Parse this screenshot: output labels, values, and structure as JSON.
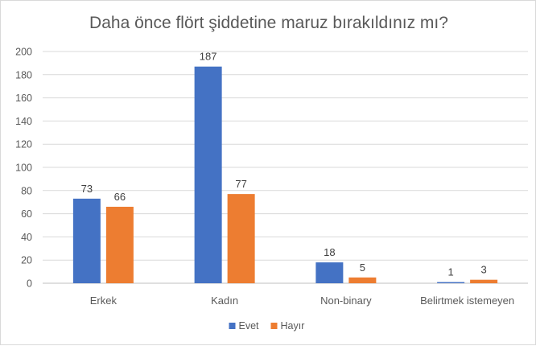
{
  "chart_data": {
    "type": "bar",
    "title": "Daha önce flört şiddetine maruz bırakıldınız mı?",
    "xlabel": "",
    "ylabel": "",
    "categories": [
      "Erkek",
      "Kadın",
      "Non-binary",
      "Belirtmek istemeyen"
    ],
    "series": [
      {
        "name": "Evet",
        "color": "#4472C4",
        "values": [
          73,
          187,
          18,
          1
        ]
      },
      {
        "name": "Hayır",
        "color": "#ED7D31",
        "values": [
          66,
          77,
          5,
          3
        ]
      }
    ],
    "ylim": [
      0,
      200
    ],
    "yticks": [
      0,
      20,
      40,
      60,
      80,
      100,
      120,
      140,
      160,
      180,
      200
    ],
    "grid": true,
    "gridline_color": "#d9d9d9",
    "data_labels": true,
    "legend_position": "bottom"
  }
}
